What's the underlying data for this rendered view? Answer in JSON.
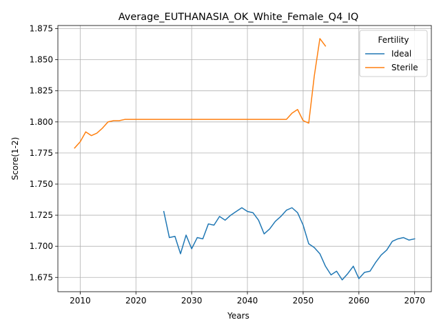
{
  "chart_data": {
    "type": "line",
    "title": "Average_EUTHANASIA_OK_White_Female_Q4_IQ",
    "xlabel": "Years",
    "ylabel": "Score(1-2)",
    "xlim": [
      2006,
      2073
    ],
    "ylim": [
      1.6635,
      1.8775
    ],
    "xticks": [
      2010,
      2020,
      2030,
      2040,
      2050,
      2060,
      2070
    ],
    "yticks": [
      1.675,
      1.7,
      1.725,
      1.75,
      1.775,
      1.8,
      1.825,
      1.85,
      1.875
    ],
    "xtick_labels": [
      "2010",
      "2020",
      "2030",
      "2040",
      "2050",
      "2060",
      "2070"
    ],
    "ytick_labels": [
      "1.675",
      "1.700",
      "1.725",
      "1.750",
      "1.775",
      "1.800",
      "1.825",
      "1.850",
      "1.875"
    ],
    "grid": true,
    "legend": {
      "title": "Fertility",
      "position": "top-right"
    },
    "series": [
      {
        "name": "Ideal",
        "color": "#1f77b4",
        "x": [
          2025,
          2026,
          2027,
          2028,
          2029,
          2030,
          2031,
          2032,
          2033,
          2034,
          2035,
          2036,
          2037,
          2038,
          2039,
          2040,
          2041,
          2042,
          2043,
          2044,
          2045,
          2046,
          2047,
          2048,
          2049,
          2050,
          2051,
          2052,
          2053,
          2054,
          2055,
          2056,
          2057,
          2058,
          2059,
          2060,
          2061,
          2062,
          2063,
          2064,
          2065,
          2066,
          2067,
          2068,
          2069,
          2070
        ],
        "y": [
          1.728,
          1.707,
          1.708,
          1.694,
          1.709,
          1.698,
          1.707,
          1.706,
          1.718,
          1.717,
          1.724,
          1.721,
          1.725,
          1.728,
          1.731,
          1.728,
          1.727,
          1.721,
          1.71,
          1.714,
          1.72,
          1.724,
          1.729,
          1.731,
          1.727,
          1.717,
          1.702,
          1.699,
          1.694,
          1.684,
          1.677,
          1.68,
          1.673,
          1.678,
          1.684,
          1.674,
          1.679,
          1.68,
          1.687,
          1.693,
          1.697,
          1.704,
          1.706,
          1.707,
          1.705,
          1.706
        ]
      },
      {
        "name": "Sterile",
        "color": "#ff7f0e",
        "x": [
          2009,
          2010,
          2011,
          2012,
          2013,
          2014,
          2015,
          2016,
          2017,
          2018,
          2019,
          2020,
          2021,
          2022,
          2023,
          2024,
          2025,
          2026,
          2027,
          2028,
          2029,
          2030,
          2031,
          2032,
          2033,
          2034,
          2035,
          2036,
          2037,
          2038,
          2039,
          2040,
          2041,
          2042,
          2043,
          2044,
          2045,
          2046,
          2047,
          2048,
          2049,
          2050,
          2051,
          2052,
          2053,
          2054
        ],
        "y": [
          1.779,
          1.784,
          1.792,
          1.789,
          1.791,
          1.795,
          1.8,
          1.801,
          1.801,
          1.802,
          1.802,
          1.802,
          1.802,
          1.802,
          1.802,
          1.802,
          1.802,
          1.802,
          1.802,
          1.802,
          1.802,
          1.802,
          1.802,
          1.802,
          1.802,
          1.802,
          1.802,
          1.802,
          1.802,
          1.802,
          1.802,
          1.802,
          1.802,
          1.802,
          1.802,
          1.802,
          1.802,
          1.802,
          1.802,
          1.807,
          1.81,
          1.801,
          1.799,
          1.837,
          1.867,
          1.861
        ]
      }
    ]
  }
}
